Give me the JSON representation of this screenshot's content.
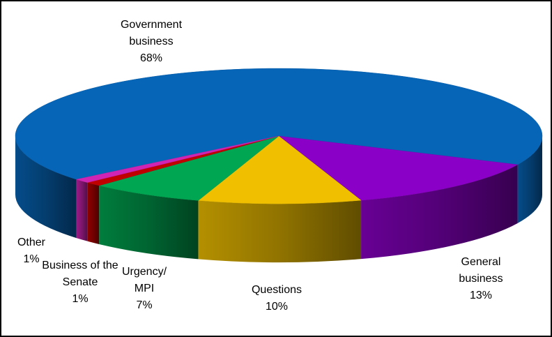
{
  "chart_data": {
    "type": "pie3d",
    "categories": [
      "Government business",
      "General business",
      "Questions",
      "Urgency/MPI",
      "Business of the Senate",
      "Other"
    ],
    "values": [
      68,
      13,
      10,
      7,
      1,
      1
    ],
    "value_labels": [
      "68%",
      "13%",
      "10%",
      "7%",
      "1%",
      "1%"
    ],
    "colors": [
      "#0765b8",
      "#8a00c6",
      "#f0c000",
      "#00a651",
      "#c00000",
      "#d024b4"
    ]
  }
}
